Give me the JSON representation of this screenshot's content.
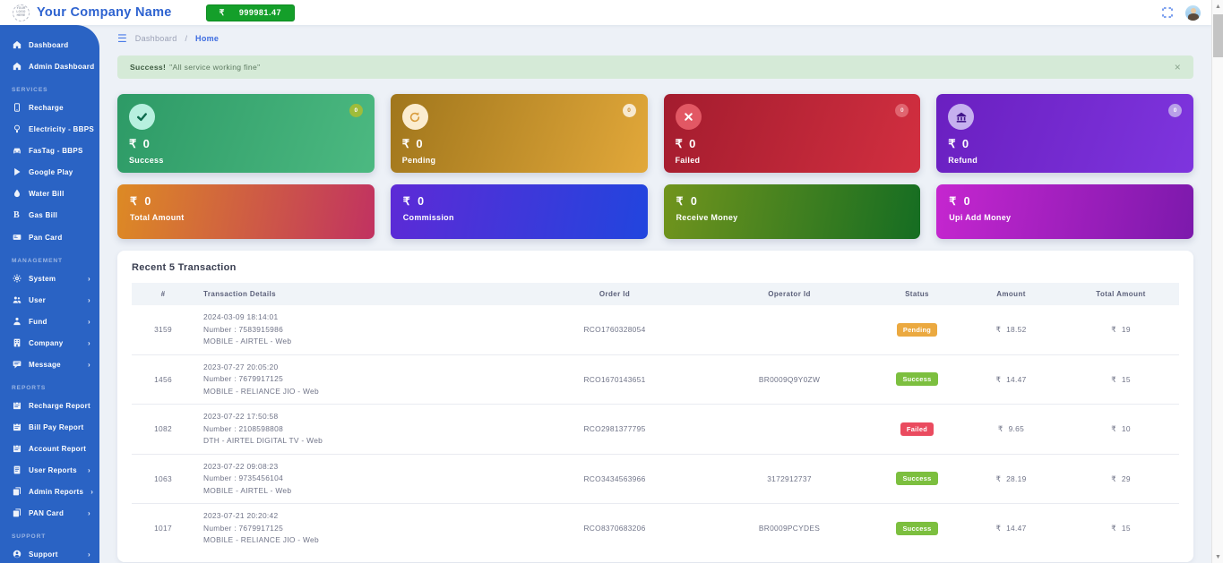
{
  "header": {
    "logo_text": "YOUR LOGO HERE",
    "company_name": "Your Company Name",
    "currency": "₹",
    "balance": "999981.47"
  },
  "breadcrumb": {
    "section": "Dashboard",
    "separator": "/",
    "current": "Home"
  },
  "alert": {
    "title": "Success!",
    "message": "\"All service working fine\"",
    "close": "×"
  },
  "sidebar": {
    "sections": [
      {
        "header": null,
        "items": [
          {
            "label": "Dashboard",
            "icon": "home",
            "arrow": false
          },
          {
            "label": "Admin Dashboard",
            "icon": "home",
            "arrow": false
          }
        ]
      },
      {
        "header": "SERVICES",
        "items": [
          {
            "label": "Recharge",
            "icon": "mobile",
            "arrow": false
          },
          {
            "label": "Electricity - BBPS",
            "icon": "bulb",
            "arrow": false
          },
          {
            "label": "FasTag - BBPS",
            "icon": "car",
            "arrow": false
          },
          {
            "label": "Google Play",
            "icon": "play",
            "arrow": false
          },
          {
            "label": "Water Bill",
            "icon": "drop",
            "arrow": false
          },
          {
            "label": "Gas Bill",
            "icon": "gas",
            "arrow": false
          },
          {
            "label": "Pan Card",
            "icon": "card",
            "arrow": false
          }
        ]
      },
      {
        "header": "MANAGEMENT",
        "items": [
          {
            "label": "System",
            "icon": "gear",
            "arrow": true
          },
          {
            "label": "User",
            "icon": "users",
            "arrow": true
          },
          {
            "label": "Fund",
            "icon": "fund",
            "arrow": true
          },
          {
            "label": "Company",
            "icon": "company",
            "arrow": true
          },
          {
            "label": "Message",
            "icon": "message",
            "arrow": true
          }
        ]
      },
      {
        "header": "REPORTS",
        "items": [
          {
            "label": "Recharge Report",
            "icon": "report",
            "arrow": false
          },
          {
            "label": "Bill Pay Report",
            "icon": "report",
            "arrow": false
          },
          {
            "label": "Account Report",
            "icon": "report",
            "arrow": false
          },
          {
            "label": "User Reports",
            "icon": "doc",
            "arrow": true
          },
          {
            "label": "Admin Reports",
            "icon": "copy",
            "arrow": true
          },
          {
            "label": "PAN Card",
            "icon": "copy",
            "arrow": true
          }
        ]
      },
      {
        "header": "SUPPORT",
        "items": [
          {
            "label": "Support",
            "icon": "support",
            "arrow": true
          }
        ]
      }
    ]
  },
  "stat_cards": [
    {
      "label": "Success",
      "value": "0",
      "count": "0",
      "icon": "check",
      "gradient": [
        "#2d9a66",
        "#4cb981"
      ],
      "icon_bg": "#b7f0df",
      "icon_color": "#0d6b4d",
      "badge_bg": "#9fbc3a",
      "badge_color": "#ffffff"
    },
    {
      "label": "Pending",
      "value": "0",
      "count": "0",
      "icon": "refresh",
      "gradient": [
        "#a0761c",
        "#e2a83a"
      ],
      "icon_bg": "#fbeccf",
      "icon_color": "#d89a3a",
      "badge_bg": "#f7e9cf",
      "badge_color": "#c98a2e"
    },
    {
      "label": "Failed",
      "value": "0",
      "count": "0",
      "icon": "cross",
      "gradient": [
        "#a31c2e",
        "#d22f40"
      ],
      "icon_bg": "#e25864",
      "icon_color": "#ffffff",
      "badge_bg": "#e06570",
      "badge_color": "#f8dfe2"
    },
    {
      "label": "Refund",
      "value": "0",
      "count": "0",
      "icon": "bank",
      "gradient": [
        "#6a1fc0",
        "#7e35de"
      ],
      "icon_bg": "#c6b0ef",
      "icon_color": "#41148a",
      "badge_bg": "#b9a0e8",
      "badge_color": "#ffffff"
    }
  ],
  "amount_cards": [
    {
      "label": "Total Amount",
      "value": "0",
      "gradient": [
        "#dd8a24",
        "#c13261"
      ]
    },
    {
      "label": "Commission",
      "value": "0",
      "gradient": [
        "#5d2ad6",
        "#2145de"
      ]
    },
    {
      "label": "Receive Money",
      "value": "0",
      "gradient": [
        "#71941d",
        "#156d22"
      ]
    },
    {
      "label": "Upi Add Money",
      "value": "0",
      "gradient": [
        "#c526cf",
        "#7c19ac"
      ]
    }
  ],
  "table": {
    "title": "Recent 5 Transaction",
    "headers": [
      "#",
      "Transaction Details",
      "Order Id",
      "Operator Id",
      "Status",
      "Amount",
      "Total Amount"
    ],
    "rows": [
      {
        "id": "3159",
        "datetime": "2024-03-09 18:14:01",
        "number": "Number : 7583915986",
        "service": "MOBILE - AIRTEL - Web",
        "order_id": "RCO1760328054",
        "operator_id": "",
        "status": "Pending",
        "amount": "18.52",
        "total": "19"
      },
      {
        "id": "1456",
        "datetime": "2023-07-27 20:05:20",
        "number": "Number : 7679917125",
        "service": "MOBILE - RELIANCE JIO - Web",
        "order_id": "RCO1670143651",
        "operator_id": "BR0009Q9Y0ZW",
        "status": "Success",
        "amount": "14.47",
        "total": "15"
      },
      {
        "id": "1082",
        "datetime": "2023-07-22 17:50:58",
        "number": "Number : 2108598808",
        "service": "DTH - AIRTEL DIGITAL TV - Web",
        "order_id": "RCO2981377795",
        "operator_id": "",
        "status": "Failed",
        "amount": "9.65",
        "total": "10"
      },
      {
        "id": "1063",
        "datetime": "2023-07-22 09:08:23",
        "number": "Number : 9735456104",
        "service": "MOBILE - AIRTEL - Web",
        "order_id": "RCO3434563966",
        "operator_id": "3172912737",
        "status": "Success",
        "amount": "28.19",
        "total": "29"
      },
      {
        "id": "1017",
        "datetime": "2023-07-21 20:20:42",
        "number": "Number : 7679917125",
        "service": "MOBILE - RELIANCE JIO - Web",
        "order_id": "RCO8370683206",
        "operator_id": "BR0009PCYDES",
        "status": "Success",
        "amount": "14.47",
        "total": "15"
      }
    ]
  },
  "status_colors": {
    "Pending": "#eba940",
    "Success": "#7cbf3f",
    "Failed": "#ea4b5f"
  },
  "colors": {
    "sidebar": "#2a63c4",
    "brand_blue": "#2e63d0",
    "balance_green": "#149f2a",
    "page_bg": "#edf1f7"
  }
}
